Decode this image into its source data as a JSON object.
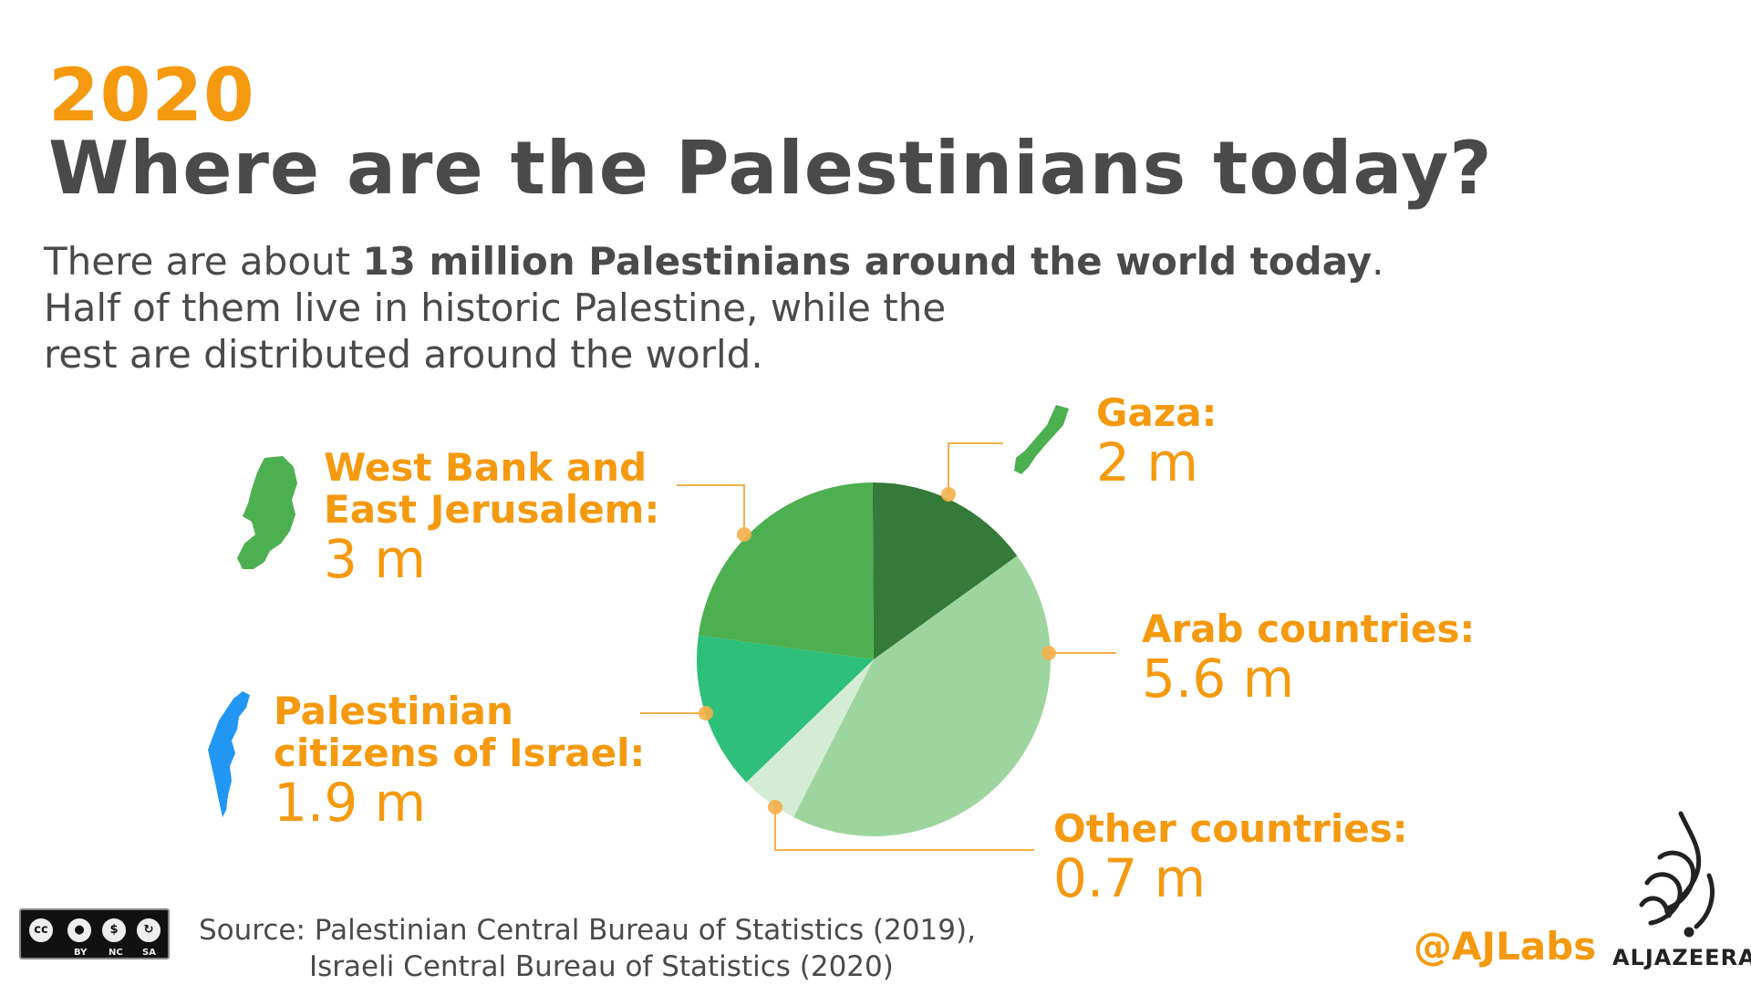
{
  "header": {
    "year": "2020",
    "title": "Where are the Palestinians today?"
  },
  "intro": {
    "line1_pre": "There are about ",
    "line1_bold": "13 million Palestinians around the world today",
    "line1_post": ".",
    "line2": "Half of them live in historic Palestine, while the",
    "line3": "rest are distributed around the world."
  },
  "chart_data": {
    "type": "pie",
    "unit": "m",
    "slices": [
      {
        "name": "Gaza:",
        "label": "2 m",
        "value": 2,
        "color": "#357a38"
      },
      {
        "name": "Arab countries:",
        "label": "5.6 m",
        "value": 5.6,
        "color": "#9ed59f"
      },
      {
        "name": "Other countries:",
        "label": "0.7 m",
        "value": 0.7,
        "color": "#d4ecd4"
      },
      {
        "name": "Palestinian citizens of Israel:",
        "label": "1.9 m",
        "value": 1.9,
        "color": "#2ec07a"
      },
      {
        "name": "West Bank and East Jerusalem:",
        "label": "3 m",
        "value": 3,
        "color": "#4caf50"
      }
    ]
  },
  "labels": {
    "gaza": {
      "name": "Gaza:",
      "value": "2 m"
    },
    "arab": {
      "name": "Arab countries:",
      "value": "5.6 m"
    },
    "other": {
      "name": "Other countries:",
      "value": "0.7 m"
    },
    "israel": {
      "name_line1": "Palestinian",
      "name_line2": "citizens of Israel:",
      "value": "1.9 m"
    },
    "westbank": {
      "name_line1": "West Bank and",
      "name_line2": "East Jerusalem:",
      "value": "3 m"
    }
  },
  "map_icons": {
    "gaza": {
      "icon": "gaza-map-icon",
      "color": "#4caf50"
    },
    "westbank": {
      "icon": "west-bank-map-icon",
      "color": "#4caf50"
    },
    "israel": {
      "icon": "israel-map-icon",
      "color": "#2196f3"
    }
  },
  "colors": {
    "accent": "#f5990f",
    "text": "#4a4a4a",
    "leader": "#f5b04a"
  },
  "footer": {
    "source_line1": "Source: Palestinian Central Bureau of Statistics (2019),",
    "source_line2": "Israeli Central Bureau of Statistics  (2020)",
    "license": {
      "cc": "cc",
      "by": "BY",
      "nc": "NC",
      "sa": "SA"
    },
    "handle": "@AJLabs",
    "brand": "ALJAZEERA"
  }
}
